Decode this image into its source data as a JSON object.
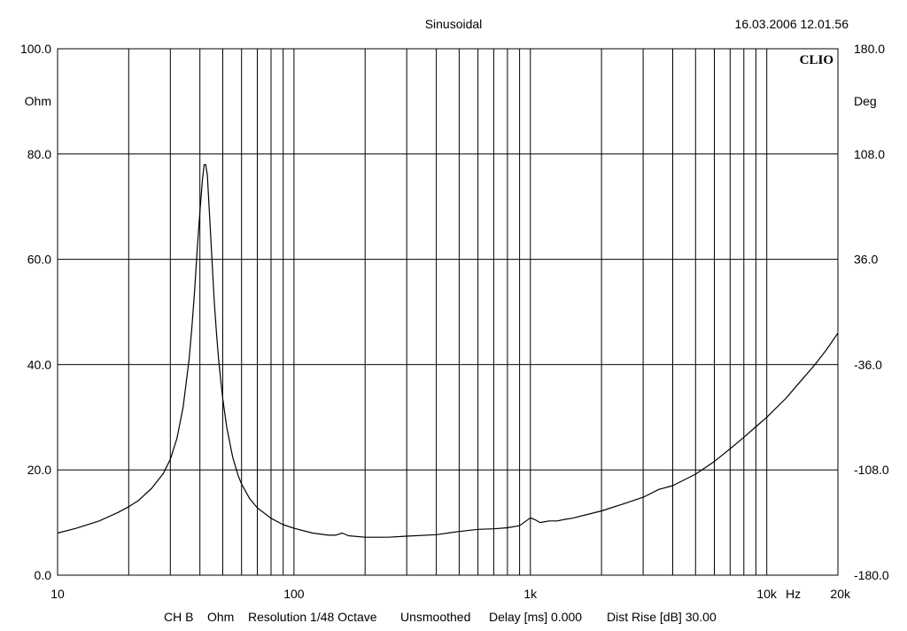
{
  "header": {
    "title": "Sinusoidal",
    "timestamp": "16.03.2006 12.01.56"
  },
  "logo": "CLIO",
  "footer": {
    "channel": "CH B",
    "unit": "Ohm",
    "resolution": "Resolution 1/48 Octave",
    "smoothing": "Unsmoothed",
    "delay": "Delay [ms] 0.000",
    "dist_rise": "Dist Rise [dB] 30.00"
  },
  "chart_data": {
    "type": "line",
    "x_scale": "log",
    "xlim": [
      10,
      20000
    ],
    "ylim": [
      0,
      100
    ],
    "y2lim": [
      -180,
      180
    ],
    "ylabel": "Ohm",
    "y2label": "Deg",
    "xunit": "Hz",
    "grid": true,
    "x_ticks": [
      {
        "value": 10,
        "label": "10"
      },
      {
        "value": 100,
        "label": "100"
      },
      {
        "value": 1000,
        "label": "1k"
      },
      {
        "value": 10000,
        "label": "10k"
      },
      {
        "value": 20000,
        "label": "20k"
      }
    ],
    "y_ticks": [
      {
        "value": 0,
        "label": "0.0"
      },
      {
        "value": 20,
        "label": "20.0"
      },
      {
        "value": 40,
        "label": "40.0"
      },
      {
        "value": 60,
        "label": "60.0"
      },
      {
        "value": 80,
        "label": "80.0"
      },
      {
        "value": 100,
        "label": "100.0"
      }
    ],
    "y2_ticks": [
      {
        "value": -180,
        "label": "-180.0"
      },
      {
        "value": -108,
        "label": "-108.0"
      },
      {
        "value": -36,
        "label": "-36.0"
      },
      {
        "value": 36,
        "label": "36.0"
      },
      {
        "value": 108,
        "label": "108.0"
      },
      {
        "value": 180,
        "label": "180.0"
      }
    ],
    "series": [
      {
        "color": "#000000",
        "x": [
          10,
          12,
          15,
          18,
          20,
          22,
          25,
          28,
          30,
          32,
          34,
          36,
          37,
          38,
          39,
          40,
          41,
          41.7,
          42.3,
          43,
          44,
          45,
          46,
          47,
          48,
          50,
          52,
          55,
          58,
          60,
          65,
          70,
          80,
          90,
          100,
          120,
          140,
          150,
          160,
          170,
          200,
          250,
          300,
          400,
          500,
          600,
          700,
          800,
          900,
          1000,
          1050,
          1100,
          1200,
          1300,
          1400,
          1500,
          2000,
          2500,
          3000,
          3500,
          4000,
          5000,
          6000,
          7000,
          8000,
          9000,
          10000,
          12000,
          14000,
          16000,
          18000,
          20000
        ],
        "y": [
          8.0,
          8.9,
          10.3,
          11.9,
          13.0,
          14.2,
          16.5,
          19.3,
          22.0,
          26.0,
          32.0,
          41.0,
          47.0,
          54.0,
          62.0,
          69.0,
          75.0,
          78.0,
          78.0,
          76.0,
          68.0,
          60.0,
          52.0,
          46.0,
          41.0,
          33.5,
          28.0,
          22.5,
          19.0,
          17.3,
          14.5,
          12.8,
          10.8,
          9.6,
          8.9,
          8.0,
          7.6,
          7.6,
          8.0,
          7.5,
          7.2,
          7.2,
          7.4,
          7.7,
          8.3,
          8.7,
          8.8,
          9.0,
          9.4,
          10.9,
          10.5,
          10.0,
          10.3,
          10.3,
          10.6,
          10.8,
          12.2,
          13.6,
          14.8,
          16.3,
          17.0,
          19.2,
          21.6,
          24.0,
          26.2,
          28.2,
          30.0,
          33.5,
          37.0,
          40.0,
          43.0,
          46.0
        ]
      }
    ]
  }
}
